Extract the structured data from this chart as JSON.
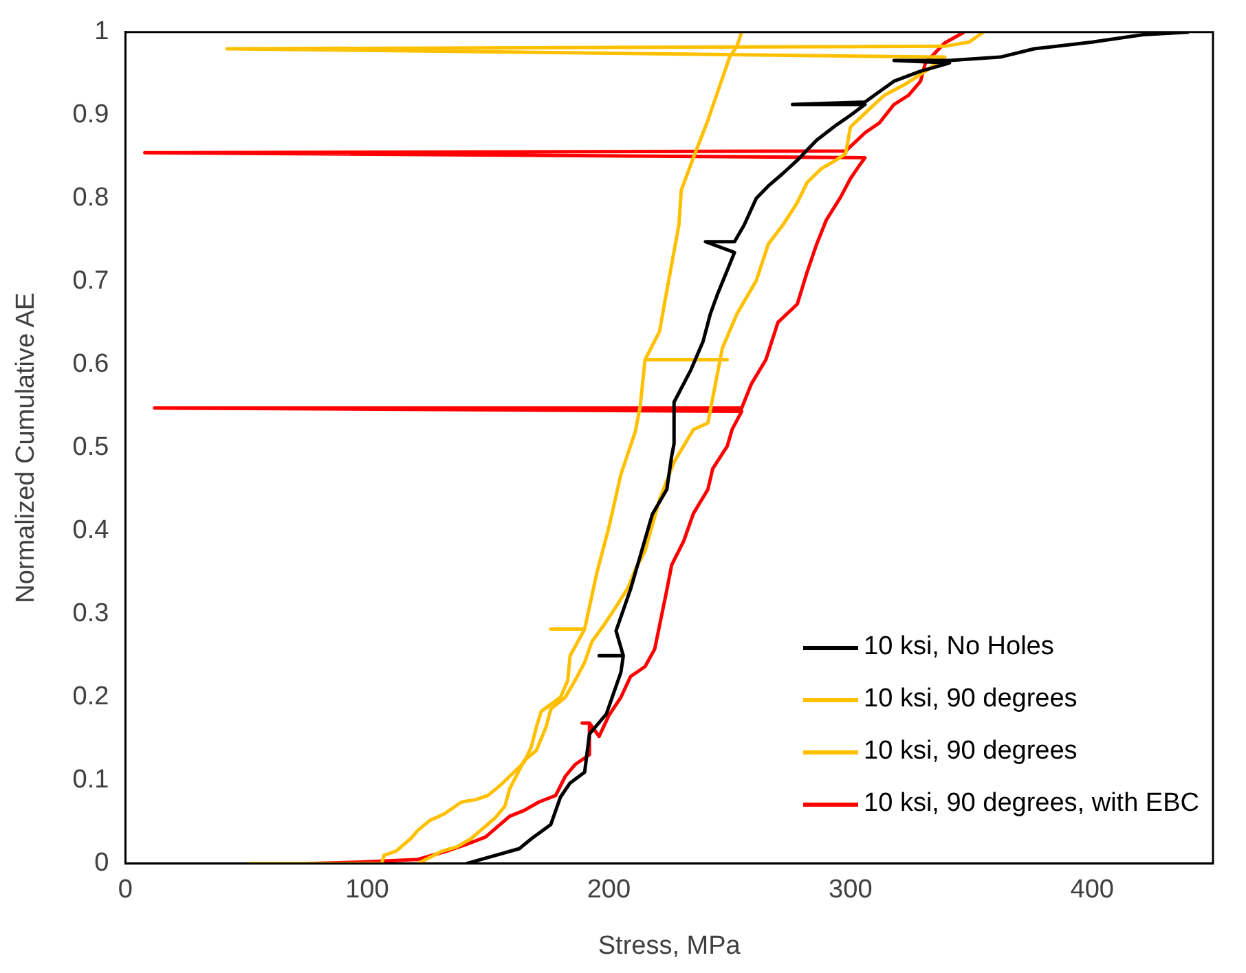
{
  "chart_data": {
    "type": "line",
    "xlabel": "Stress, MPa",
    "ylabel": "Normalized Cumulative AE",
    "xlim": [
      0,
      450
    ],
    "xticks": [
      0,
      100,
      200,
      300,
      400
    ],
    "ylim": [
      0,
      1
    ],
    "yticks": [
      0,
      {
        "value": 0.1,
        "label": "0.1"
      },
      {
        "value": 0.2,
        "label": "0.2"
      },
      {
        "value": 0.3,
        "label": "0.3"
      },
      {
        "value": 0.4,
        "label": "0.4"
      },
      {
        "value": 0.5,
        "label": "0.5"
      },
      {
        "value": 0.6,
        "label": "0.6"
      },
      {
        "value": 0.7,
        "label": "0.7"
      },
      {
        "value": 0.8,
        "label": "0.8"
      },
      {
        "value": 0.9,
        "label": "0.9"
      },
      1
    ],
    "grid": false,
    "legend": "bottom right",
    "marker": "none",
    "line_style": "solid",
    "series": [
      {
        "name": "10 ksi, No Holes",
        "color": "#000000",
        "x": [
          141,
          163,
          168,
          176,
          180,
          184,
          190,
          192,
          199,
          205,
          206,
          196,
          206,
          203,
          209,
          213,
          218,
          224,
          226,
          227,
          227,
          234,
          239,
          242,
          245,
          252,
          240,
          252,
          256,
          261,
          266,
          272,
          278,
          286,
          294,
          300,
          306,
          276,
          306,
          318,
          329,
          341,
          318,
          341,
          362,
          376,
          400,
          421,
          440
        ],
        "values": [
          0,
          0.018,
          0.03,
          0.047,
          0.08,
          0.097,
          0.11,
          0.156,
          0.18,
          0.23,
          0.25,
          0.25,
          0.25,
          0.28,
          0.33,
          0.37,
          0.42,
          0.45,
          0.49,
          0.505,
          0.555,
          0.594,
          0.628,
          0.661,
          0.685,
          0.735,
          0.748,
          0.748,
          0.768,
          0.8,
          0.815,
          0.83,
          0.846,
          0.87,
          0.888,
          0.9,
          0.913,
          0.913,
          0.916,
          0.941,
          0.953,
          0.963,
          0.966,
          0.966,
          0.97,
          0.98,
          0.988,
          0.997,
          1
        ]
      },
      {
        "name": "10 ksi, 90 degrees",
        "color": "#ffc000",
        "x": [
          51,
          106,
          107,
          112,
          118,
          121,
          126,
          132,
          139,
          145,
          150,
          155,
          159,
          165,
          168,
          170,
          172,
          180,
          183,
          184,
          190,
          176,
          190,
          195,
          200,
          205,
          211,
          213,
          215,
          249,
          215,
          221,
          223,
          229,
          230,
          235,
          241,
          250,
          253,
          255
        ],
        "values": [
          0,
          0,
          0.01,
          0.015,
          0.03,
          0.04,
          0.052,
          0.06,
          0.074,
          0.077,
          0.082,
          0.094,
          0.105,
          0.122,
          0.141,
          0.164,
          0.183,
          0.2,
          0.22,
          0.25,
          0.282,
          0.282,
          0.282,
          0.349,
          0.404,
          0.468,
          0.52,
          0.55,
          0.606,
          0.606,
          0.606,
          0.64,
          0.673,
          0.768,
          0.81,
          0.849,
          0.894,
          0.97,
          0.983,
          1
        ]
      },
      {
        "name": "10 ksi, 90 degrees",
        "color": "#ffc000",
        "x": [
          121,
          131,
          137,
          143,
          147,
          153,
          157,
          159,
          162,
          165,
          170,
          174,
          176,
          182,
          186,
          190,
          193,
          198,
          203,
          208,
          211,
          215,
          221,
          227,
          235,
          241,
          247,
          253,
          261,
          266,
          272,
          278,
          282,
          288,
          294,
          298,
          300,
          308,
          314,
          323,
          331,
          339,
          42,
          339,
          349,
          355
        ],
        "values": [
          0,
          0.015,
          0.02,
          0.03,
          0.04,
          0.055,
          0.069,
          0.09,
          0.107,
          0.124,
          0.136,
          0.164,
          0.186,
          0.2,
          0.22,
          0.242,
          0.267,
          0.287,
          0.309,
          0.332,
          0.354,
          0.376,
          0.438,
          0.483,
          0.522,
          0.53,
          0.62,
          0.661,
          0.701,
          0.745,
          0.768,
          0.795,
          0.819,
          0.836,
          0.846,
          0.854,
          0.886,
          0.908,
          0.924,
          0.938,
          0.953,
          0.97,
          0.98,
          0.983,
          0.988,
          1
        ]
      },
      {
        "name": "10 ksi, 90 degrees, with EBC",
        "color": "#ff0000",
        "x": [
          75,
          98,
          121,
          133,
          141,
          149,
          155,
          159,
          165,
          171,
          178,
          182,
          186,
          192,
          192,
          189,
          192,
          196,
          200,
          205,
          209,
          215,
          219,
          224,
          226,
          231,
          235,
          241,
          243,
          249,
          251,
          255,
          12,
          255,
          259,
          265,
          270,
          278,
          282,
          286,
          290,
          296,
          300,
          304,
          306,
          8,
          298,
          306,
          312,
          318,
          324,
          329,
          331,
          335,
          339,
          347
        ],
        "values": [
          0,
          0.002,
          0.005,
          0.015,
          0.023,
          0.032,
          0.047,
          0.057,
          0.064,
          0.074,
          0.082,
          0.105,
          0.119,
          0.131,
          0.169,
          0.169,
          0.169,
          0.153,
          0.178,
          0.2,
          0.225,
          0.237,
          0.258,
          0.329,
          0.359,
          0.388,
          0.421,
          0.45,
          0.475,
          0.502,
          0.522,
          0.544,
          0.548,
          0.548,
          0.577,
          0.606,
          0.651,
          0.673,
          0.711,
          0.745,
          0.774,
          0.802,
          0.824,
          0.841,
          0.849,
          0.855,
          0.857,
          0.879,
          0.891,
          0.913,
          0.924,
          0.941,
          0.963,
          0.975,
          0.987,
          1
        ]
      }
    ]
  }
}
